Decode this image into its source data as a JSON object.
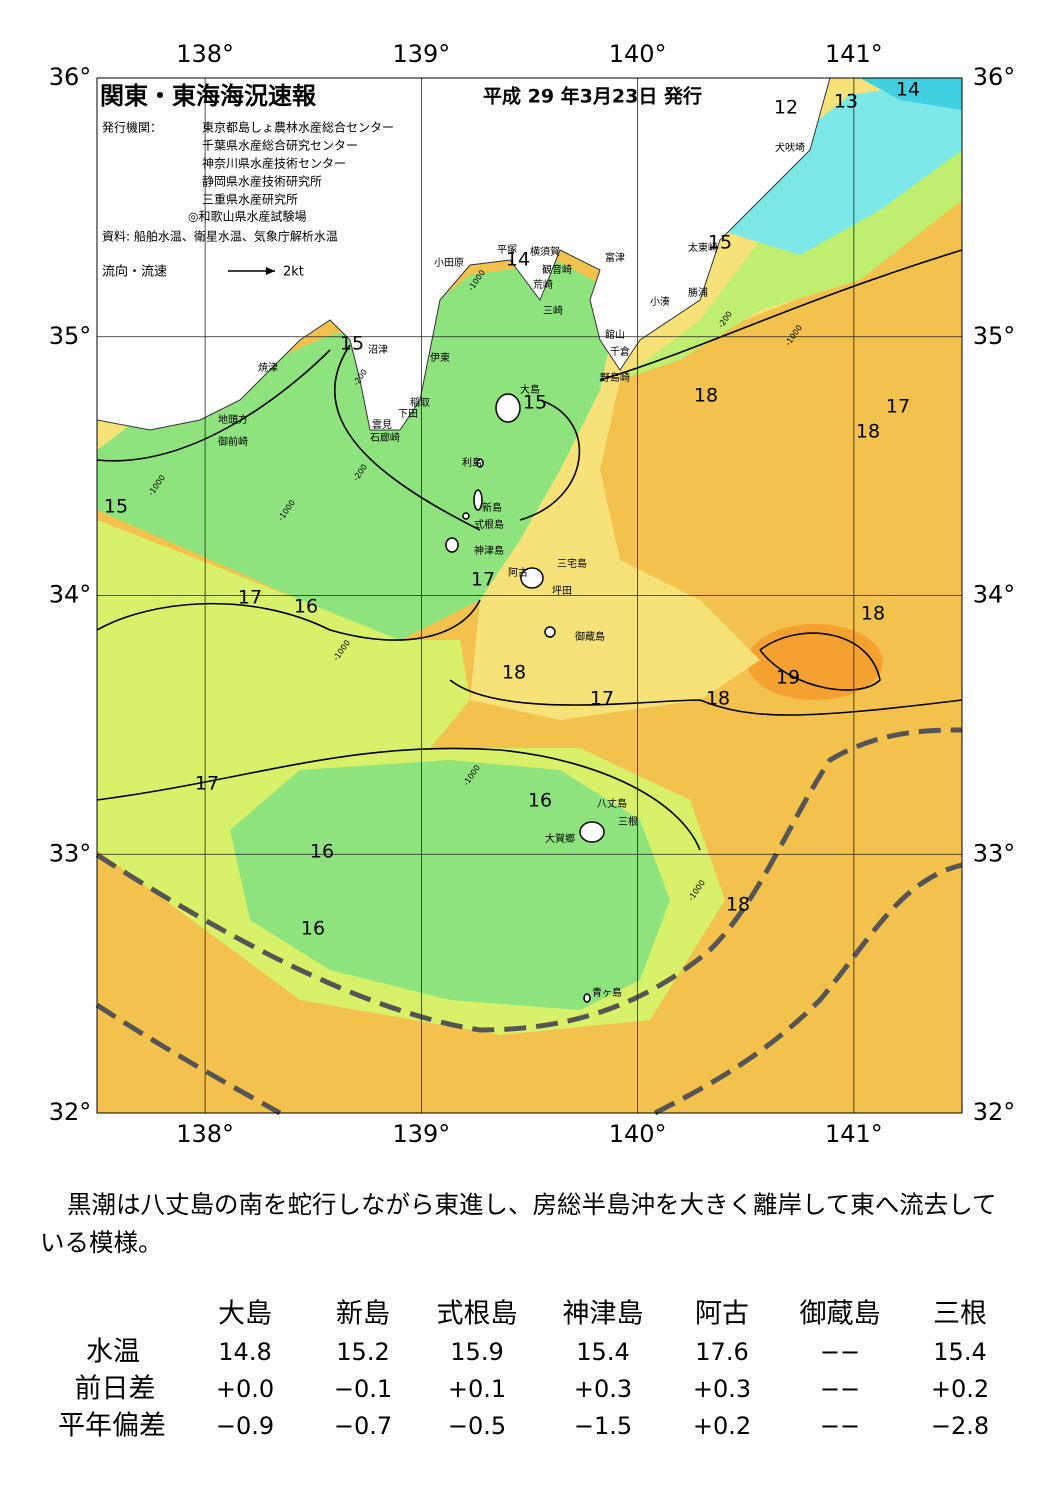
{
  "map": {
    "title": "関東・東海海況速報",
    "date": "平成 29 年3月23日 発行",
    "publisher_label": "発行機関：",
    "publishers": [
      "東京都島しょ農林水産総合センター",
      "千葉県水産総合研究センター",
      "神奈川県水産技術センター",
      "静岡県水産技術研究所",
      "三重県水産研究所",
      "◎和歌山県水産試験場"
    ],
    "source": "資料: 船舶水温、衛星水温、気象庁解析水温",
    "legend": {
      "label": "流向・流速",
      "scale": "2kt"
    },
    "xlim": [
      137.5,
      141.5
    ],
    "ylim": [
      32,
      36
    ],
    "lon_ticks": [
      {
        "value": 138,
        "label": "138°"
      },
      {
        "value": 139,
        "label": "139°"
      },
      {
        "value": 140,
        "label": "140°"
      },
      {
        "value": 141,
        "label": "141°"
      }
    ],
    "lat_ticks": [
      {
        "value": 32,
        "label": "32°"
      },
      {
        "value": 33,
        "label": "33°"
      },
      {
        "value": 34,
        "label": "34°"
      },
      {
        "value": 35,
        "label": "35°"
      },
      {
        "value": 36,
        "label": "36°"
      }
    ],
    "places": [
      "犬吠埼",
      "太東崎",
      "勝浦",
      "小湊",
      "富津",
      "館山",
      "千倉",
      "野島崎",
      "平塚",
      "横須賀",
      "観音崎",
      "荒崎",
      "三崎",
      "小田原",
      "沼津",
      "伊東",
      "稲取",
      "下田",
      "雲見",
      "石廊崎",
      "焼津",
      "地頭方",
      "御前崎",
      "大島",
      "利島",
      "新島",
      "式根島",
      "神津島",
      "三宅島",
      "阿古",
      "坪田",
      "御蔵島",
      "八丈島",
      "三根",
      "大賀郷",
      "青ヶ島"
    ],
    "isotherm_labels": [
      12,
      13,
      14,
      15,
      14,
      15,
      15,
      18,
      17,
      18,
      15,
      17,
      17,
      16,
      18,
      18,
      19,
      17,
      18,
      17,
      16,
      16,
      18,
      16
    ],
    "depth_labels": [
      -1000,
      -200,
      -1000,
      -200,
      -1000,
      -200,
      -1000,
      -1000,
      -1000,
      -1000
    ]
  },
  "summary": "黒潮は八丈島の南を蛇行しながら東進し、房総半島沖を大きく離岸して東へ流去している模様。",
  "table": {
    "columns": [
      "大島",
      "新島",
      "式根島",
      "神津島",
      "阿古",
      "御蔵島",
      "三根"
    ],
    "rows": [
      {
        "label": "水温",
        "cells": [
          "14.8",
          "15.2",
          "15.9",
          "15.4",
          "17.6",
          "−−",
          "15.4"
        ]
      },
      {
        "label": "前日差",
        "cells": [
          "+0.0",
          "−0.1",
          "+0.1",
          "+0.3",
          "+0.3",
          "−−",
          "+0.2"
        ]
      },
      {
        "label": "平年偏差",
        "cells": [
          "−0.9",
          "−0.7",
          "−0.5",
          "−1.5",
          "+0.2",
          "−−",
          "−2.8"
        ]
      }
    ]
  }
}
